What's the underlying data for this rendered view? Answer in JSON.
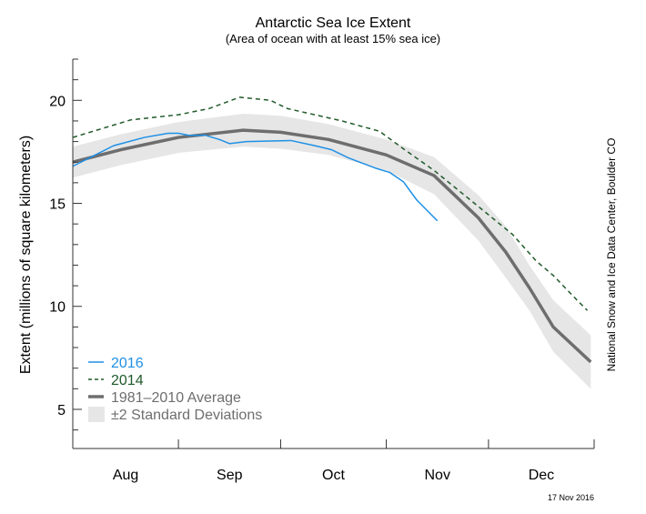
{
  "chart_data": {
    "type": "line",
    "title": "Antarctic Sea Ice Extent",
    "subtitle": "(Area of ocean with at least 15% sea ice)",
    "ylabel": "Extent (millions of square kilometers)",
    "xlabel": "",
    "ylim": [
      3.1,
      22
    ],
    "yticks": [
      5,
      10,
      15,
      20
    ],
    "yminor_step": 1,
    "x_range": [
      "Aug 1",
      "Dec 31"
    ],
    "month_labels": [
      "Aug",
      "Sep",
      "Oct",
      "Nov",
      "Dec"
    ],
    "grid": false,
    "legend_placement": "bottom-left",
    "credit": "National Snow and Ice Data Center, Boulder CO",
    "date_stamp": "17 Nov 2016",
    "colors": {
      "2016": "#1e90e6",
      "2014": "#1f5a2a",
      "average": "#6e6e6e",
      "band": "#e6e6e6"
    },
    "series": [
      {
        "name": "2016",
        "style": "solid",
        "x": [
          "Aug 1",
          "Aug 7",
          "Aug 13",
          "Aug 22",
          "Aug 29",
          "Sep 1",
          "Sep 4",
          "Sep 9",
          "Sep 13",
          "Sep 16",
          "Sep 21",
          "Oct 4",
          "Oct 11",
          "Oct 16",
          "Oct 21",
          "Oct 29",
          "Nov 2",
          "Nov 6",
          "Nov 10",
          "Nov 16"
        ],
        "y": [
          16.8,
          17.3,
          17.8,
          18.2,
          18.4,
          18.4,
          18.3,
          18.3,
          18.1,
          17.9,
          18.0,
          18.05,
          17.8,
          17.6,
          17.2,
          16.7,
          16.5,
          16.05,
          15.15,
          14.15
        ]
      },
      {
        "name": "2014",
        "style": "dashed",
        "x": [
          "Aug 1",
          "Aug 18",
          "Sep 1",
          "Sep 10",
          "Sep 19",
          "Sep 28",
          "Oct 3",
          "Oct 19",
          "Oct 30",
          "Nov 6",
          "Nov 15",
          "Nov 28",
          "Dec 8",
          "Dec 15",
          "Dec 20",
          "Dec 27",
          "Dec 30"
        ],
        "y": [
          18.2,
          19.05,
          19.3,
          19.6,
          20.15,
          20.0,
          19.6,
          19.0,
          18.5,
          17.65,
          16.6,
          14.85,
          13.5,
          12.2,
          11.5,
          10.3,
          9.8
        ]
      },
      {
        "name": "1981–2010 Average",
        "style": "thick",
        "x": [
          "Aug 1",
          "Aug 15",
          "Sep 1",
          "Sep 20",
          "Oct 1",
          "Oct 15",
          "Nov 1",
          "Nov 15",
          "Nov 28",
          "Dec 6",
          "Dec 13",
          "Dec 20",
          "Dec 31"
        ],
        "y": [
          17.0,
          17.6,
          18.2,
          18.55,
          18.45,
          18.1,
          17.35,
          16.35,
          14.3,
          12.65,
          10.9,
          9.0,
          7.3
        ]
      }
    ],
    "band": {
      "name": "±2 Standard Deviations",
      "x": [
        "Aug 1",
        "Aug 15",
        "Sep 1",
        "Sep 20",
        "Oct 1",
        "Oct 15",
        "Nov 1",
        "Nov 15",
        "Nov 28",
        "Dec 6",
        "Dec 13",
        "Dec 20",
        "Dec 31"
      ],
      "upper": [
        17.75,
        18.35,
        18.95,
        19.35,
        19.25,
        18.85,
        18.1,
        17.25,
        15.4,
        13.9,
        12.0,
        10.3,
        8.6
      ],
      "lower": [
        16.25,
        16.85,
        17.45,
        17.75,
        17.65,
        17.35,
        16.6,
        15.45,
        13.2,
        11.4,
        9.8,
        7.8,
        6.0
      ]
    }
  }
}
